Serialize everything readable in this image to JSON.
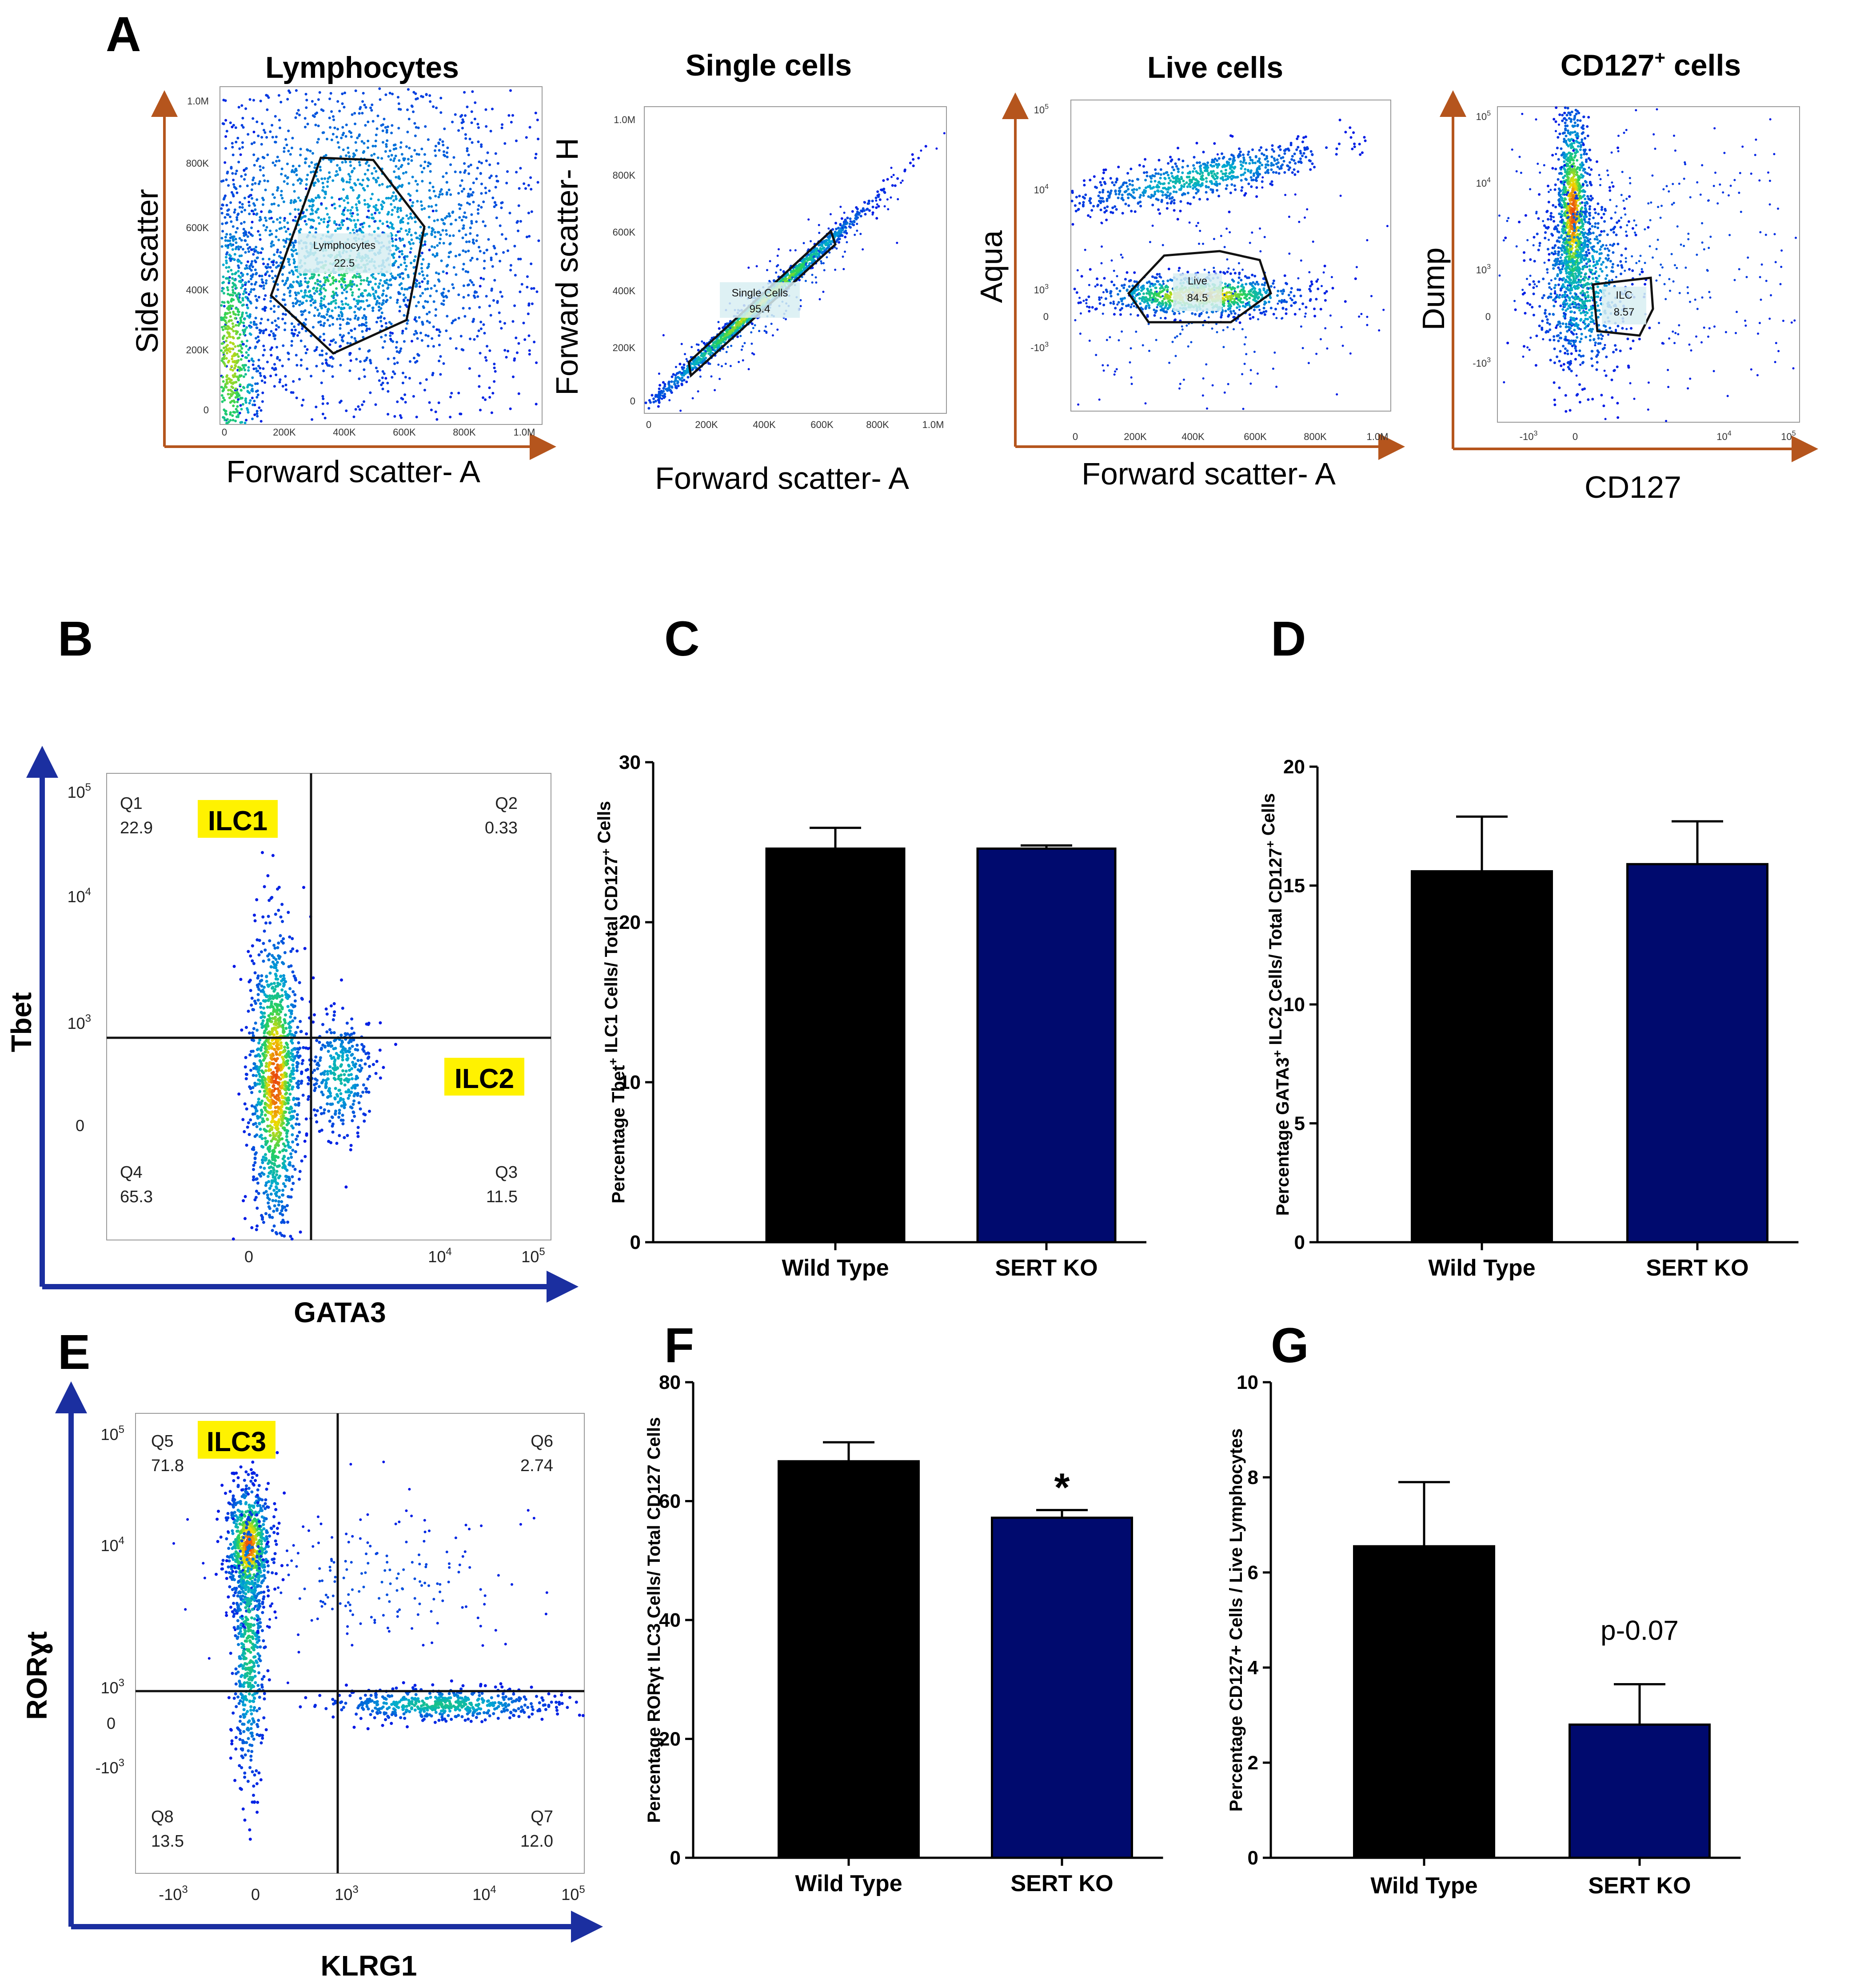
{
  "panels": {
    "A": {
      "label": "A",
      "plots": [
        {
          "id": "a1",
          "title": "Lymphocytes",
          "xlabel": "Forward scatter- A",
          "ylabel": "Side scatter",
          "gate_name": "Lymphocytes",
          "gate_value": "22.5"
        },
        {
          "id": "a2",
          "title": "Single cells",
          "xlabel": "Forward scatter- A",
          "ylabel": "Forward scatter- H",
          "gate_name": "Single Cells",
          "gate_value": "95.4"
        },
        {
          "id": "a3",
          "title": "Live cells",
          "xlabel": "Forward scatter- A",
          "ylabel": "Aqua",
          "gate_name": "Live",
          "gate_value": "84.5"
        },
        {
          "id": "a4",
          "title_main": "CD127",
          "title_sup": "+",
          "title_rest": " cells",
          "xlabel": "CD127",
          "ylabel": "Dump",
          "gate_name": "ILC",
          "gate_value": "8.57"
        }
      ],
      "fsc_ticks": [
        "0",
        "200K",
        "400K",
        "600K",
        "800K",
        "1.0M"
      ],
      "ssc_ticks": [
        "0",
        "200K",
        "400K",
        "600K",
        "800K",
        "1.0M"
      ],
      "log_ticks": {
        "neg": "-10",
        "neg_exp": "3",
        "zero": "0",
        "t3": "10",
        "t3_exp": "3",
        "t4": "10",
        "t4_exp": "4",
        "t5": "10",
        "t5_exp": "5"
      }
    },
    "B": {
      "label": "B",
      "xlabel": "GATA3",
      "ylabel": "Tbet",
      "population_1": "ILC1",
      "population_2": "ILC2",
      "quadrants": [
        {
          "name": "Q1",
          "value": "22.9"
        },
        {
          "name": "Q2",
          "value": "0.33"
        },
        {
          "name": "Q3",
          "value": "11.5"
        },
        {
          "name": "Q4",
          "value": "65.3"
        }
      ]
    },
    "E": {
      "label": "E",
      "xlabel": "KLRG1",
      "ylabel": "RORɣt",
      "population_1": "ILC3",
      "quadrants": [
        {
          "name": "Q5",
          "value": "71.8"
        },
        {
          "name": "Q6",
          "value": "2.74"
        },
        {
          "name": "Q7",
          "value": "12.0"
        },
        {
          "name": "Q8",
          "value": "13.5"
        }
      ]
    }
  },
  "chart_data": [
    {
      "panel": "C",
      "type": "bar",
      "categories": [
        "Wild Type",
        "SERT KO"
      ],
      "values": [
        24.6,
        24.6
      ],
      "errors": [
        1.3,
        0.2
      ],
      "colors": [
        "#000000",
        "#000a6e"
      ],
      "ylim": [
        0,
        30
      ],
      "yticks": [
        0,
        10,
        20,
        30
      ],
      "ylabel_parts": [
        "Percentage Tbet",
        "+",
        " ILC1 Cells/ Total CD127",
        "+",
        " Cells"
      ],
      "annotation": ""
    },
    {
      "panel": "D",
      "type": "bar",
      "categories": [
        "Wild Type",
        "SERT KO"
      ],
      "values": [
        15.6,
        15.9
      ],
      "errors": [
        2.3,
        1.8
      ],
      "colors": [
        "#000000",
        "#000a6e"
      ],
      "ylim": [
        0,
        20
      ],
      "yticks": [
        0,
        5,
        10,
        15,
        20
      ],
      "ylabel_parts": [
        "Percentage GATA3",
        "+",
        " ILC2 Cells/ Total CD127",
        "+",
        " Cells"
      ],
      "annotation": ""
    },
    {
      "panel": "F",
      "type": "bar",
      "categories": [
        "Wild Type",
        "SERT KO"
      ],
      "values": [
        66.7,
        57.2
      ],
      "errors": [
        3.2,
        1.3
      ],
      "colors": [
        "#000000",
        "#000a6e"
      ],
      "ylim": [
        0,
        80
      ],
      "yticks": [
        0,
        20,
        40,
        60,
        80
      ],
      "ylabel_parts": [
        "Percentage  RORγt ILC3 Cells/ Total CD127 Cells"
      ],
      "annotation": "*"
    },
    {
      "panel": "G",
      "type": "bar",
      "categories": [
        "Wild Type",
        "SERT KO"
      ],
      "values": [
        6.55,
        2.8
      ],
      "errors": [
        1.35,
        0.85
      ],
      "colors": [
        "#000000",
        "#000a6e"
      ],
      "ylim": [
        0,
        10
      ],
      "yticks": [
        0,
        2,
        4,
        6,
        8,
        10
      ],
      "ylabel_parts": [
        "Percentage CD127+ Cells / Live Lymphocytes"
      ],
      "annotation": "p-0.07"
    }
  ]
}
